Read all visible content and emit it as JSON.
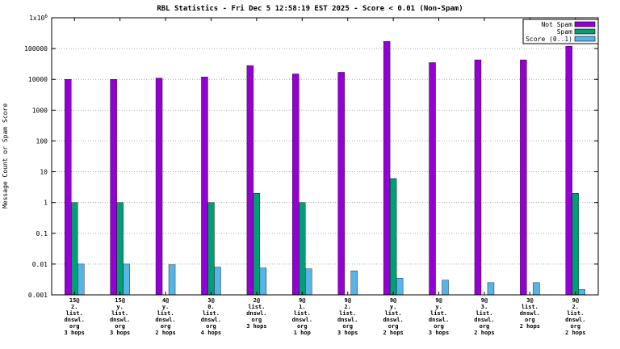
{
  "chart_data": {
    "type": "bar",
    "title": "RBL Statistics - Fri Dec  5 12:58:19 EST 2025 - Score < 0.01 (Non-Spam)",
    "ylabel": "Message Count or Spam Score",
    "y_scale": "log",
    "ylim": [
      0.001,
      1000000
    ],
    "grid": true,
    "legend_position": "top-right",
    "y_ticks": [
      {
        "value": 1000000,
        "label": "1x10",
        "sup": "6"
      },
      {
        "value": 100000,
        "label": "100000"
      },
      {
        "value": 10000,
        "label": "10000"
      },
      {
        "value": 1000,
        "label": "1000"
      },
      {
        "value": 100,
        "label": "100"
      },
      {
        "value": 10,
        "label": "10"
      },
      {
        "value": 1,
        "label": "1"
      },
      {
        "value": 0.1,
        "label": "0.1"
      },
      {
        "value": 0.01,
        "label": "0.01"
      },
      {
        "value": 0.001,
        "label": "0.001"
      }
    ],
    "legend": [
      {
        "name": "Not Spam",
        "color": "#9400d3"
      },
      {
        "name": "Spam",
        "color": "#009e73"
      },
      {
        "name": "Score (0..1)",
        "color": "#56b4e9"
      }
    ],
    "categories": [
      {
        "lines": [
          "15@",
          "2.",
          "list.",
          "dnswl.",
          "org",
          "3 hops"
        ]
      },
      {
        "lines": [
          "15@",
          "y.",
          "list.",
          "dnswl.",
          "org",
          "3 hops"
        ]
      },
      {
        "lines": [
          "4@",
          "y.",
          "list.",
          "dnswl.",
          "org",
          "2 hops"
        ]
      },
      {
        "lines": [
          "3@",
          "0.",
          "list.",
          "dnswl.",
          "org",
          "4 hops"
        ]
      },
      {
        "lines": [
          "2@",
          "list.",
          "dnswl.",
          "org",
          "3 hops"
        ]
      },
      {
        "lines": [
          "9@",
          "1.",
          "list.",
          "dnswl.",
          "org",
          "1 hop"
        ]
      },
      {
        "lines": [
          "9@",
          "2.",
          "list.",
          "dnswl.",
          "org",
          "3 hops"
        ]
      },
      {
        "lines": [
          "9@",
          "y.",
          "list.",
          "dnswl.",
          "org",
          "2 hops"
        ]
      },
      {
        "lines": [
          "9@",
          "y.",
          "list.",
          "dnswl.",
          "org",
          "3 hops"
        ]
      },
      {
        "lines": [
          "9@",
          "3.",
          "list.",
          "dnswl.",
          "org",
          "2 hops"
        ]
      },
      {
        "lines": [
          "3@",
          "list.",
          "dnswl.",
          "org",
          "2 hops"
        ]
      },
      {
        "lines": [
          "9@",
          "2.",
          "list.",
          "dnswl.",
          "org",
          "2 hops"
        ]
      }
    ],
    "series": [
      {
        "name": "Not Spam",
        "color": "#9400d3",
        "values": [
          10000,
          10000,
          11000,
          12000,
          28000,
          15000,
          17000,
          170000,
          35000,
          43000,
          43000,
          120000
        ]
      },
      {
        "name": "Spam",
        "color": "#009e73",
        "values": [
          1,
          1,
          null,
          1,
          2,
          1,
          null,
          6,
          null,
          null,
          null,
          2
        ]
      },
      {
        "name": "Score (0..1)",
        "color": "#56b4e9",
        "values": [
          0.01,
          0.01,
          0.0095,
          0.008,
          0.0075,
          0.007,
          0.006,
          0.0035,
          0.003,
          0.0025,
          0.0025,
          0.0015
        ]
      }
    ]
  }
}
